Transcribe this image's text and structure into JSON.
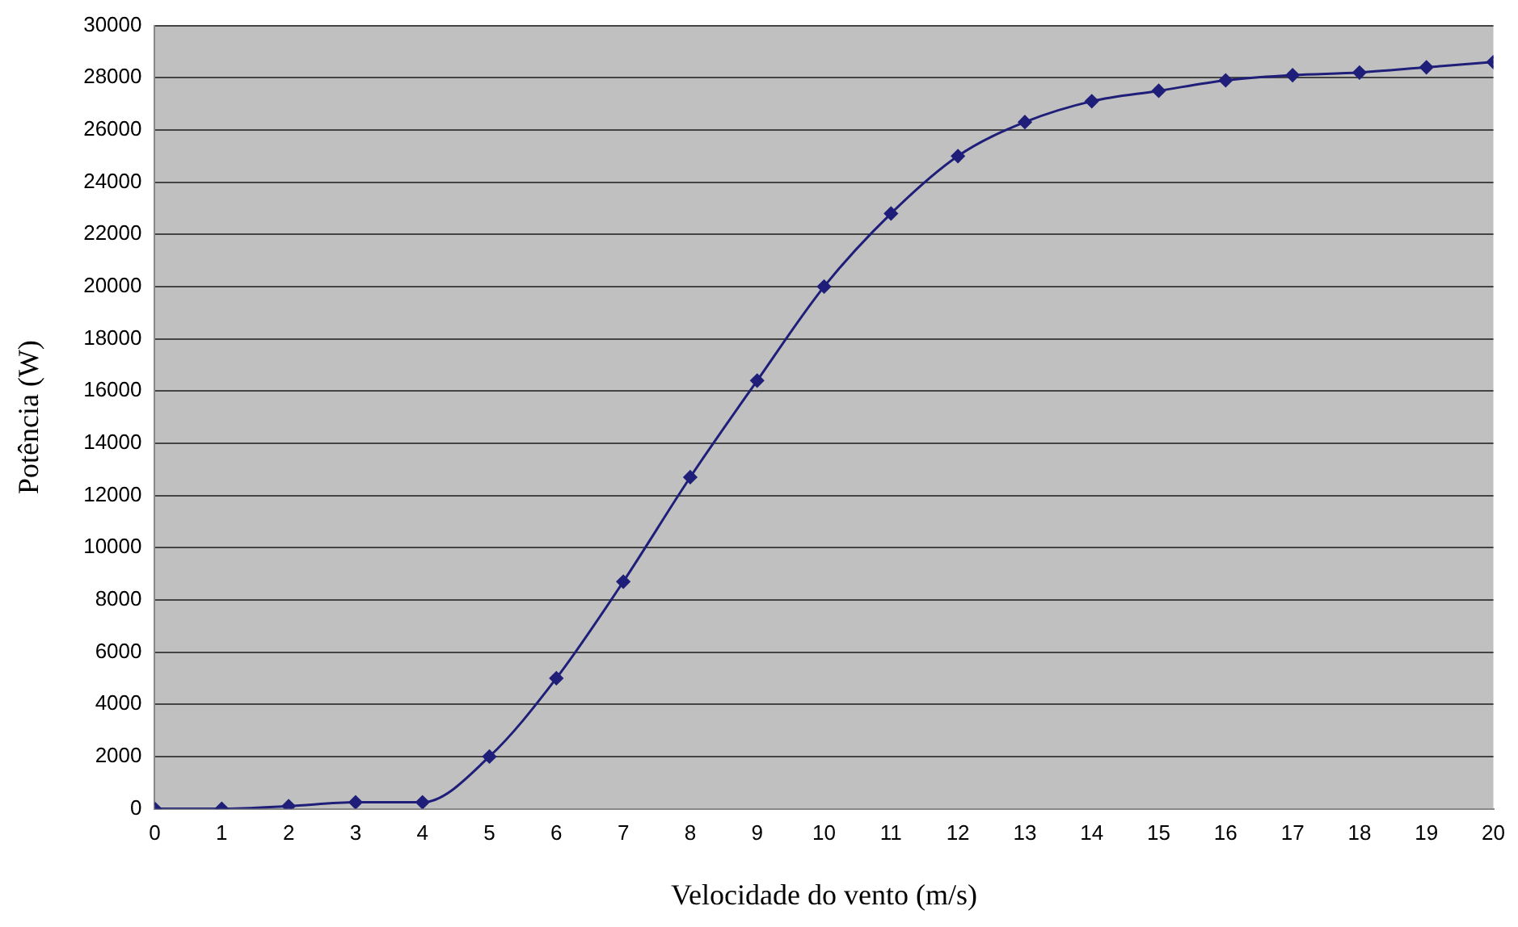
{
  "chart_data": {
    "type": "line",
    "xlabel": "Velocidade do vento (m/s)",
    "ylabel": "Potência (W)",
    "x": [
      0,
      1,
      2,
      3,
      4,
      5,
      6,
      7,
      8,
      9,
      10,
      11,
      12,
      13,
      14,
      15,
      16,
      17,
      18,
      19,
      20
    ],
    "series": [
      {
        "color": "#1f1f7a",
        "values": [
          0,
          0,
          100,
          250,
          250,
          2000,
          5000,
          8700,
          12700,
          16400,
          20000,
          22800,
          25000,
          26300,
          27100,
          27500,
          27900,
          28100,
          28200,
          28400,
          28600
        ]
      }
    ],
    "xlim": [
      0,
      20
    ],
    "xticks": [
      0,
      1,
      2,
      3,
      4,
      5,
      6,
      7,
      8,
      9,
      10,
      11,
      12,
      13,
      14,
      15,
      16,
      17,
      18,
      19,
      20
    ],
    "ylim": [
      0,
      30000
    ],
    "yticks": [
      0,
      2000,
      4000,
      6000,
      8000,
      10000,
      12000,
      14000,
      16000,
      18000,
      20000,
      22000,
      24000,
      26000,
      28000,
      30000
    ],
    "grid": "y",
    "legend": false,
    "marker": "diamond",
    "line_style": "solid"
  }
}
